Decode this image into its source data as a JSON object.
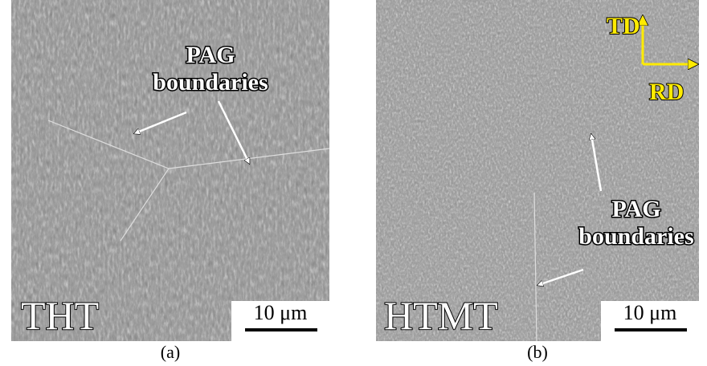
{
  "panels": [
    {
      "caption": "(a)",
      "condition": "THT",
      "annotation": {
        "line1": "PAG",
        "line2": "boundaries"
      },
      "scale_bar": "10 μm"
    },
    {
      "caption": "(b)",
      "condition": "HTMT",
      "annotation": {
        "line1": "PAG",
        "line2": "boundaries"
      },
      "scale_bar": "10 μm",
      "directions": {
        "td": "TD",
        "rd": "RD"
      }
    }
  ]
}
